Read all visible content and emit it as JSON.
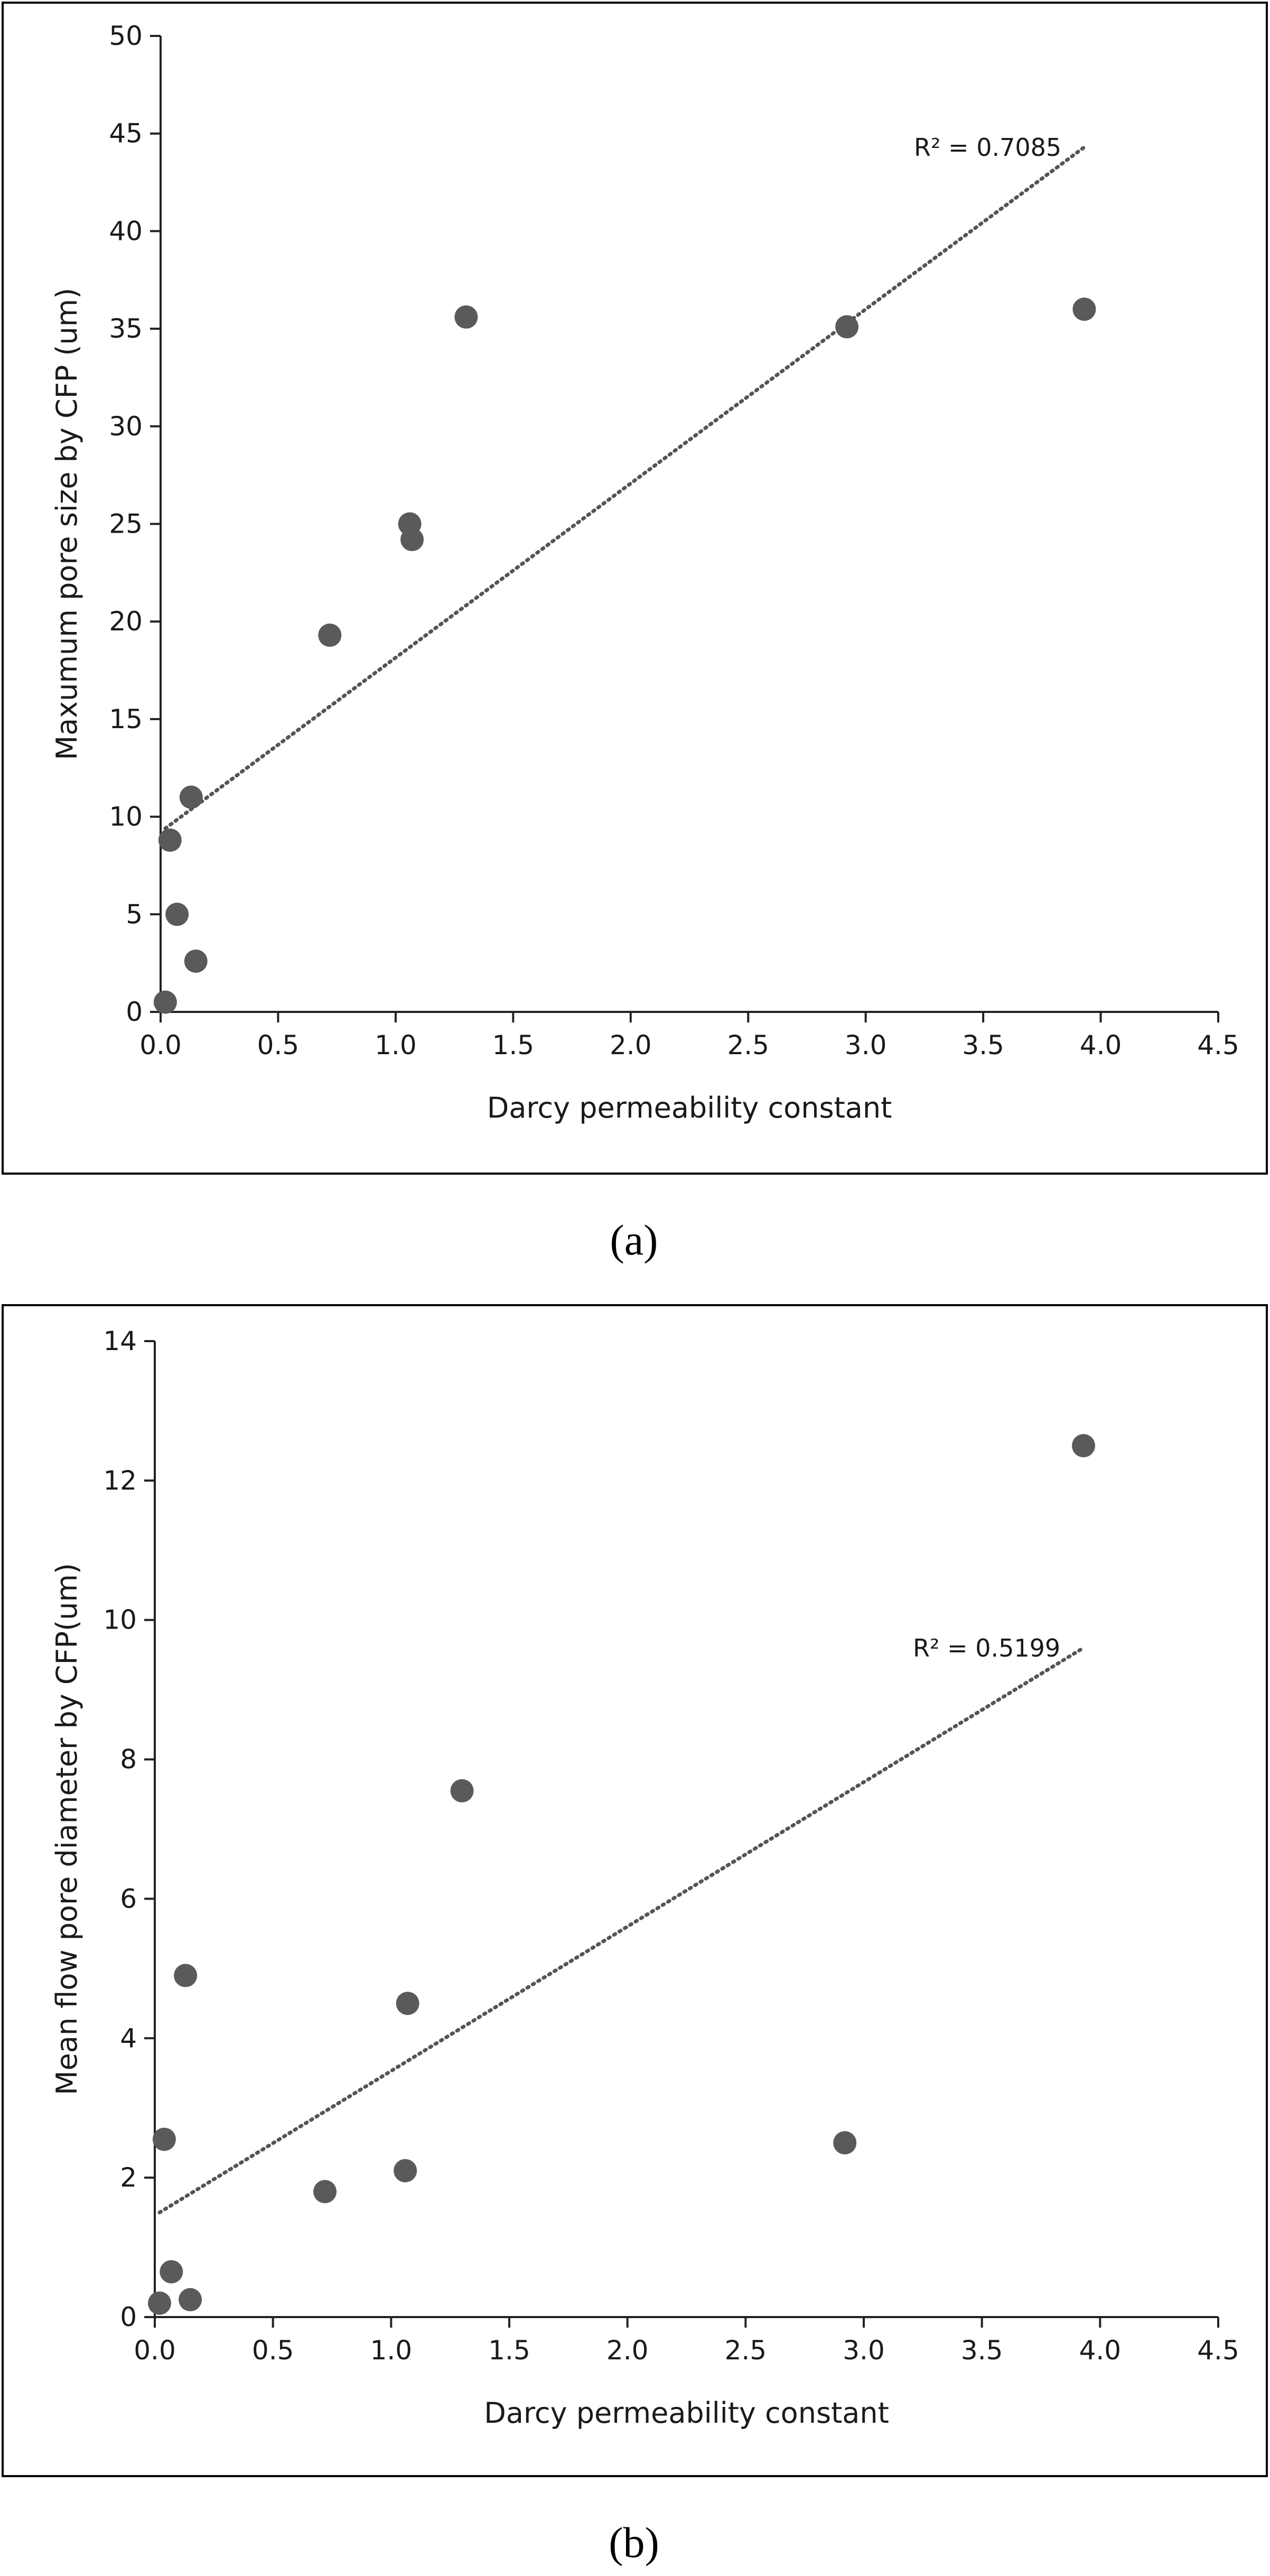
{
  "chart_data": [
    {
      "type": "scatter",
      "panel_label": "(a)",
      "title": "",
      "xlabel": "Darcy permeability constant",
      "ylabel": "Maxumum pore size by CFP (um)",
      "xlim": [
        0,
        4.5
      ],
      "ylim": [
        0,
        50
      ],
      "x_ticks": [
        "0.0",
        "0.5",
        "1.0",
        "1.5",
        "2.0",
        "2.5",
        "3.0",
        "3.5",
        "4.0",
        "4.5"
      ],
      "y_ticks": [
        "0",
        "5",
        "10",
        "15",
        "20",
        "25",
        "30",
        "35",
        "40",
        "45",
        "50"
      ],
      "grid": false,
      "legend": "none",
      "points": [
        {
          "x": 0.02,
          "y": 0.5
        },
        {
          "x": 0.04,
          "y": 8.8
        },
        {
          "x": 0.07,
          "y": 5.0
        },
        {
          "x": 0.13,
          "y": 11.0
        },
        {
          "x": 0.15,
          "y": 2.6
        },
        {
          "x": 0.72,
          "y": 19.3
        },
        {
          "x": 1.06,
          "y": 25.0
        },
        {
          "x": 1.07,
          "y": 24.2
        },
        {
          "x": 1.3,
          "y": 35.6
        },
        {
          "x": 2.92,
          "y": 35.1
        },
        {
          "x": 3.93,
          "y": 36.0
        }
      ],
      "trendline": {
        "type": "linear",
        "x_range": [
          0.02,
          3.93
        ],
        "start_y": 9.4,
        "end_y": 44.3
      },
      "annotation": "R² = 0.7085",
      "marker_color": "#5a5a5a",
      "trend_color": "#555555"
    },
    {
      "type": "scatter",
      "panel_label": "(b)",
      "title": "",
      "xlabel": "Darcy permeability constant",
      "ylabel": "Mean flow pore diameter by CFP(um)",
      "xlim": [
        0,
        4.5
      ],
      "ylim": [
        0,
        14
      ],
      "x_ticks": [
        "0.0",
        "0.5",
        "1.0",
        "1.5",
        "2.0",
        "2.5",
        "3.0",
        "3.5",
        "4.0",
        "4.5"
      ],
      "y_ticks": [
        "0",
        "2",
        "4",
        "6",
        "8",
        "10",
        "12",
        "14"
      ],
      "grid": false,
      "legend": "none",
      "points": [
        {
          "x": 0.02,
          "y": 0.2
        },
        {
          "x": 0.04,
          "y": 2.55
        },
        {
          "x": 0.07,
          "y": 0.65
        },
        {
          "x": 0.13,
          "y": 4.9
        },
        {
          "x": 0.15,
          "y": 0.25
        },
        {
          "x": 0.72,
          "y": 1.8
        },
        {
          "x": 1.06,
          "y": 2.1
        },
        {
          "x": 1.07,
          "y": 4.5
        },
        {
          "x": 1.3,
          "y": 7.55
        },
        {
          "x": 2.92,
          "y": 2.5
        },
        {
          "x": 3.93,
          "y": 12.5
        }
      ],
      "trendline": {
        "type": "linear",
        "x_range": [
          0.02,
          3.93
        ],
        "start_y": 1.5,
        "end_y": 9.6
      },
      "annotation": "R² = 0.5199",
      "marker_color": "#5a5a5a",
      "trend_color": "#555555"
    }
  ]
}
